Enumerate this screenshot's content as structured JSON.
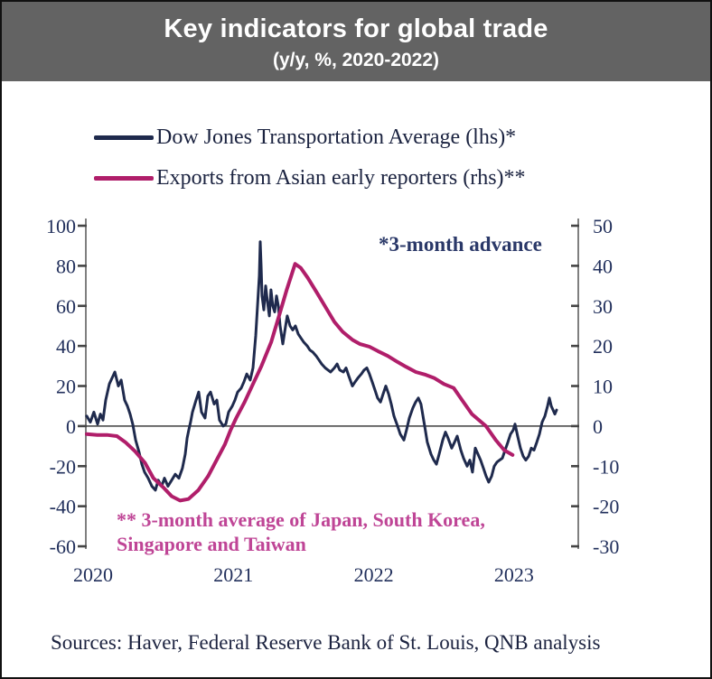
{
  "header": {
    "title": "Key indicators for global trade",
    "subtitle": "(y/y, %, 2020-2022)"
  },
  "legend": [
    {
      "label": "Dow Jones Transportation Average (lhs)*"
    },
    {
      "label": "Exports from Asian early reporters (rhs)**"
    }
  ],
  "annotations": {
    "advance_note": "*3-month advance",
    "exports_note_line1": "** 3-month average of Japan, South Korea,",
    "exports_note_line2": "Singapore and Taiwan"
  },
  "footer": {
    "sources": "Sources: Haver, Federal Reserve Bank of St. Louis, QNB analysis"
  },
  "colors": {
    "header_bg": "#636363",
    "navy": "#1f2a4d",
    "magenta": "#b01e6a",
    "axis": "#7f7f7f",
    "tick": "#454545",
    "zero_line": "#595959",
    "label": "#22305c",
    "footnote_magenta": "#bf4596"
  },
  "chart_data": {
    "type": "line",
    "title": "Key indicators for global trade",
    "subtitle": "(y/y, %, 2020-2022)",
    "grid": false,
    "legend_position": "top-left",
    "x_axis": {
      "ticks": [
        2020,
        2021,
        2022,
        2023
      ],
      "range": [
        2019.95,
        2023.46
      ]
    },
    "left_axis": {
      "label": "",
      "ticks": [
        100,
        80,
        60,
        40,
        20,
        0,
        -20,
        -40,
        -60
      ],
      "range": [
        -60,
        100
      ]
    },
    "right_axis": {
      "label": "",
      "ticks": [
        50,
        40,
        30,
        20,
        10,
        0,
        -10,
        -20,
        -30
      ],
      "range": [
        -30,
        50
      ]
    },
    "series": [
      {
        "name": "Dow Jones Transportation Average (lhs)*",
        "axis": "left",
        "color": "#1f2a4d",
        "width": 3,
        "points": [
          [
            2019.955,
            5
          ],
          [
            2019.981,
            2
          ],
          [
            2020.006,
            7
          ],
          [
            2020.032,
            1
          ],
          [
            2020.052,
            6
          ],
          [
            2020.071,
            3
          ],
          [
            2020.09,
            13
          ],
          [
            2020.116,
            21
          ],
          [
            2020.155,
            27
          ],
          [
            2020.18,
            20
          ],
          [
            2020.2,
            23
          ],
          [
            2020.225,
            13
          ],
          [
            2020.245,
            10
          ],
          [
            2020.264,
            6
          ],
          [
            2020.283,
            1
          ],
          [
            2020.303,
            -7
          ],
          [
            2020.328,
            -13
          ],
          [
            2020.348,
            -19
          ],
          [
            2020.367,
            -23
          ],
          [
            2020.393,
            -26
          ],
          [
            2020.419,
            -30
          ],
          [
            2020.444,
            -32
          ],
          [
            2020.464,
            -27
          ],
          [
            2020.489,
            -30
          ],
          [
            2020.509,
            -26
          ],
          [
            2020.534,
            -30
          ],
          [
            2020.56,
            -27
          ],
          [
            2020.586,
            -24
          ],
          [
            2020.612,
            -26
          ],
          [
            2020.637,
            -21
          ],
          [
            2020.657,
            -14
          ],
          [
            2020.67,
            -6
          ],
          [
            2020.682,
            -2
          ],
          [
            2020.695,
            2
          ],
          [
            2020.708,
            7
          ],
          [
            2020.734,
            13
          ],
          [
            2020.753,
            17
          ],
          [
            2020.773,
            7
          ],
          [
            2020.798,
            4
          ],
          [
            2020.818,
            15
          ],
          [
            2020.837,
            17
          ],
          [
            2020.863,
            11
          ],
          [
            2020.882,
            13
          ],
          [
            2020.901,
            3
          ],
          [
            2020.927,
            0
          ],
          [
            2020.946,
            1
          ],
          [
            2020.966,
            7
          ],
          [
            2020.992,
            10
          ],
          [
            2021.011,
            13
          ],
          [
            2021.03,
            17
          ],
          [
            2021.056,
            19
          ],
          [
            2021.075,
            22
          ],
          [
            2021.095,
            26
          ],
          [
            2021.12,
            23
          ],
          [
            2021.14,
            29
          ],
          [
            2021.159,
            45
          ],
          [
            2021.172,
            60
          ],
          [
            2021.185,
            75
          ],
          [
            2021.191,
            92
          ],
          [
            2021.198,
            80
          ],
          [
            2021.204,
            65
          ],
          [
            2021.217,
            58
          ],
          [
            2021.23,
            70
          ],
          [
            2021.243,
            62
          ],
          [
            2021.256,
            55
          ],
          [
            2021.268,
            68
          ],
          [
            2021.281,
            60
          ],
          [
            2021.294,
            57
          ],
          [
            2021.307,
            65
          ],
          [
            2021.32,
            60
          ],
          [
            2021.333,
            50
          ],
          [
            2021.352,
            41
          ],
          [
            2021.372,
            50
          ],
          [
            2021.384,
            55
          ],
          [
            2021.404,
            50
          ],
          [
            2021.423,
            48
          ],
          [
            2021.442,
            50
          ],
          [
            2021.462,
            46
          ],
          [
            2021.481,
            44
          ],
          [
            2021.5,
            42
          ],
          [
            2021.526,
            40
          ],
          [
            2021.545,
            38
          ],
          [
            2021.565,
            37
          ],
          [
            2021.59,
            35
          ],
          [
            2021.61,
            33
          ],
          [
            2021.629,
            31
          ],
          [
            2021.655,
            29
          ],
          [
            2021.674,
            28
          ],
          [
            2021.693,
            27
          ],
          [
            2021.719,
            29
          ],
          [
            2021.739,
            31
          ],
          [
            2021.758,
            28
          ],
          [
            2021.784,
            27
          ],
          [
            2021.803,
            29
          ],
          [
            2021.822,
            25
          ],
          [
            2021.848,
            20
          ],
          [
            2021.867,
            22
          ],
          [
            2021.887,
            24
          ],
          [
            2021.912,
            26
          ],
          [
            2021.932,
            28
          ],
          [
            2021.951,
            29
          ],
          [
            2021.97,
            26
          ],
          [
            2021.99,
            22
          ],
          [
            2022.009,
            18
          ],
          [
            2022.028,
            14
          ],
          [
            2022.048,
            12
          ],
          [
            2022.067,
            16
          ],
          [
            2022.086,
            20
          ],
          [
            2022.106,
            16
          ],
          [
            2022.125,
            11
          ],
          [
            2022.144,
            5
          ],
          [
            2022.17,
            0
          ],
          [
            2022.189,
            -4
          ],
          [
            2022.215,
            -7
          ],
          [
            2022.234,
            -2
          ],
          [
            2022.254,
            4
          ],
          [
            2022.279,
            9
          ],
          [
            2022.299,
            12
          ],
          [
            2022.318,
            14
          ],
          [
            2022.337,
            11
          ],
          [
            2022.363,
            0
          ],
          [
            2022.382,
            -8
          ],
          [
            2022.408,
            -14
          ],
          [
            2022.428,
            -17
          ],
          [
            2022.447,
            -19
          ],
          [
            2022.466,
            -14
          ],
          [
            2022.492,
            -7
          ],
          [
            2022.511,
            -3
          ],
          [
            2022.53,
            -6
          ],
          [
            2022.556,
            -11
          ],
          [
            2022.576,
            -8
          ],
          [
            2022.595,
            -5
          ],
          [
            2022.621,
            -12
          ],
          [
            2022.64,
            -16
          ],
          [
            2022.666,
            -20
          ],
          [
            2022.685,
            -17
          ],
          [
            2022.704,
            -23
          ],
          [
            2022.724,
            -11
          ],
          [
            2022.743,
            -14
          ],
          [
            2022.762,
            -17
          ],
          [
            2022.782,
            -21
          ],
          [
            2022.801,
            -25
          ],
          [
            2022.82,
            -28
          ],
          [
            2022.84,
            -25
          ],
          [
            2022.859,
            -20
          ],
          [
            2022.878,
            -18
          ],
          [
            2022.897,
            -17
          ],
          [
            2022.917,
            -16
          ],
          [
            2022.936,
            -12
          ],
          [
            2022.956,
            -8
          ],
          [
            2022.975,
            -4
          ],
          [
            2022.994,
            -2
          ],
          [
            2023.007,
            1
          ],
          [
            2023.026,
            -5
          ],
          [
            2023.046,
            -11
          ],
          [
            2023.065,
            -15
          ],
          [
            2023.084,
            -17
          ],
          [
            2023.104,
            -15
          ],
          [
            2023.123,
            -11
          ],
          [
            2023.142,
            -12
          ],
          [
            2023.162,
            -8
          ],
          [
            2023.181,
            -4
          ],
          [
            2023.2,
            2
          ],
          [
            2023.22,
            5
          ],
          [
            2023.239,
            10
          ],
          [
            2023.252,
            14
          ],
          [
            2023.265,
            10
          ],
          [
            2023.278,
            8
          ],
          [
            2023.291,
            6
          ],
          [
            2023.303,
            8
          ]
        ]
      },
      {
        "name": "Exports from Asian early reporters (rhs)**",
        "axis": "right",
        "color": "#b01e6a",
        "width": 4,
        "points": [
          [
            2019.955,
            -2
          ],
          [
            2020.03,
            -2.2
          ],
          [
            2020.1,
            -2.2
          ],
          [
            2020.17,
            -2.5
          ],
          [
            2020.23,
            -4
          ],
          [
            2020.3,
            -6.3
          ],
          [
            2020.37,
            -9.2
          ],
          [
            2020.43,
            -13
          ],
          [
            2020.5,
            -15.3
          ],
          [
            2020.56,
            -17.5
          ],
          [
            2020.62,
            -18.6
          ],
          [
            2020.68,
            -18.2
          ],
          [
            2020.75,
            -16
          ],
          [
            2020.82,
            -12.5
          ],
          [
            2020.88,
            -8.5
          ],
          [
            2020.94,
            -4.5
          ],
          [
            2020.98,
            -1
          ],
          [
            2021.02,
            2
          ],
          [
            2021.08,
            6
          ],
          [
            2021.14,
            10.5
          ],
          [
            2021.2,
            15
          ],
          [
            2021.27,
            21
          ],
          [
            2021.33,
            28
          ],
          [
            2021.38,
            34
          ],
          [
            2021.44,
            40.5
          ],
          [
            2021.48,
            39.5
          ],
          [
            2021.53,
            37
          ],
          [
            2021.6,
            33
          ],
          [
            2021.66,
            29.5
          ],
          [
            2021.72,
            26
          ],
          [
            2021.78,
            23.5
          ],
          [
            2021.85,
            21.5
          ],
          [
            2021.9,
            20.5
          ],
          [
            2021.97,
            19.8
          ],
          [
            2022.03,
            18.7
          ],
          [
            2022.1,
            17.5
          ],
          [
            2022.17,
            16
          ],
          [
            2022.23,
            14.8
          ],
          [
            2022.3,
            13.5
          ],
          [
            2022.37,
            12.8
          ],
          [
            2022.43,
            12
          ],
          [
            2022.5,
            10.5
          ],
          [
            2022.57,
            9.5
          ],
          [
            2022.63,
            6.5
          ],
          [
            2022.7,
            3
          ],
          [
            2022.8,
            0
          ],
          [
            2022.87,
            -3.5
          ],
          [
            2022.93,
            -6
          ],
          [
            2022.99,
            -7.2
          ]
        ]
      }
    ]
  }
}
